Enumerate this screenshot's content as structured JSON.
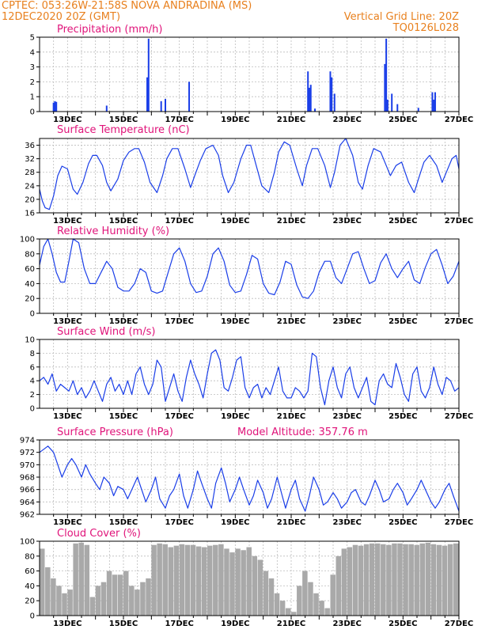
{
  "header": {
    "line1": "CPTEC:   053:26W-21:58S   NOVA ANDRADINA (MS)",
    "line2_left": "12DEC2020 20Z (GMT)",
    "line2_right": "Vertical Grid Line: 20Z",
    "line3_right": "TQ0126L028"
  },
  "colors": {
    "header": "#e8801e",
    "title": "#e0147a",
    "line": "#1a3ee8",
    "cloud": "#a9a9a9"
  },
  "chart_data": [
    {
      "type": "bar",
      "title": "Precipitation (mm/h)",
      "ylim": [
        0,
        5
      ],
      "yticks": [
        "0",
        "1",
        "2",
        "3",
        "4",
        "5"
      ],
      "xticklabels": [
        "13DEC",
        "15DEC",
        "17DEC",
        "19DEC",
        "21DEC",
        "23DEC",
        "25DEC",
        "27DEC"
      ],
      "series": [
        {
          "x": [
            0.5,
            0.55,
            0.6,
            2.4,
            3.85,
            3.9,
            4.35,
            4.5,
            5.35,
            9.6,
            9.65,
            9.7,
            9.85,
            10.4,
            10.45,
            10.55,
            12.35,
            12.4,
            12.45,
            12.6,
            12.8,
            13.55,
            14.05,
            14.1,
            14.15
          ],
          "values": [
            0.6,
            0.7,
            0.65,
            0.4,
            2.3,
            4.9,
            0.7,
            0.85,
            2.0,
            2.7,
            1.6,
            1.8,
            0.2,
            2.7,
            2.3,
            1.2,
            3.2,
            4.9,
            0.8,
            1.2,
            0.5,
            0.25,
            1.3,
            0.8,
            1.3
          ]
        }
      ]
    },
    {
      "type": "line",
      "title": "Surface Temperature (nC)",
      "ylim": [
        16,
        38
      ],
      "yticks": [
        "16",
        "20",
        "24",
        "28",
        "32",
        "36"
      ],
      "xticklabels": [
        "13DEC",
        "15DEC",
        "17DEC",
        "19DEC",
        "21DEC",
        "23DEC",
        "25DEC",
        "27DEC"
      ],
      "series": [
        {
          "x": [
            0,
            0.1,
            0.2,
            0.35,
            0.5,
            0.65,
            0.8,
            1.0,
            1.2,
            1.35,
            1.55,
            1.75,
            1.9,
            2.05,
            2.25,
            2.4,
            2.55,
            2.8,
            3.0,
            3.2,
            3.4,
            3.55,
            3.75,
            3.95,
            4.2,
            4.4,
            4.55,
            4.75,
            4.95,
            5.2,
            5.4,
            5.55,
            5.75,
            5.95,
            6.2,
            6.4,
            6.55,
            6.75,
            6.95,
            7.2,
            7.4,
            7.55,
            7.75,
            7.95,
            8.2,
            8.4,
            8.55,
            8.75,
            8.95,
            9.2,
            9.4,
            9.55,
            9.75,
            9.95,
            10.2,
            10.4,
            10.55,
            10.75,
            10.95,
            11.2,
            11.4,
            11.55,
            11.75,
            11.95,
            12.2,
            12.4,
            12.55,
            12.75,
            12.95,
            13.2,
            13.4,
            13.55,
            13.75,
            13.95,
            14.2,
            14.4,
            14.55,
            14.75,
            14.9,
            15.0
          ],
          "values": [
            23,
            19.5,
            17.5,
            17,
            21,
            27,
            29.8,
            29,
            23,
            21.5,
            25,
            30.5,
            33,
            33,
            30,
            25,
            22.5,
            26,
            31.5,
            34,
            35,
            35,
            31,
            25,
            22,
            27,
            32,
            35,
            35,
            29,
            23.5,
            27,
            31.5,
            35,
            36,
            33,
            27,
            22,
            25,
            32,
            36,
            36,
            30,
            24,
            22,
            28,
            34,
            37,
            36,
            29,
            24,
            30,
            35,
            35,
            30,
            23.5,
            28,
            36,
            38,
            33,
            25,
            23,
            30,
            35,
            34,
            30,
            27,
            30,
            31,
            25,
            22,
            26,
            31,
            33,
            30,
            25,
            28,
            32,
            33,
            29
          ]
        }
      ]
    },
    {
      "type": "line",
      "title": "Relative Humidity (%)",
      "ylim": [
        0,
        100
      ],
      "yticks": [
        "0",
        "20",
        "40",
        "60",
        "80",
        "100"
      ],
      "xticklabels": [
        "13DEC",
        "15DEC",
        "17DEC",
        "19DEC",
        "21DEC",
        "23DEC",
        "25DEC",
        "27DEC"
      ],
      "series": [
        {
          "x": [
            0,
            0.15,
            0.3,
            0.45,
            0.6,
            0.75,
            0.9,
            1.05,
            1.2,
            1.4,
            1.6,
            1.8,
            2.0,
            2.2,
            2.4,
            2.6,
            2.8,
            3.0,
            3.2,
            3.4,
            3.6,
            3.8,
            4.0,
            4.2,
            4.4,
            4.6,
            4.8,
            5.0,
            5.2,
            5.4,
            5.6,
            5.8,
            6.0,
            6.2,
            6.4,
            6.6,
            6.8,
            7.0,
            7.2,
            7.4,
            7.6,
            7.8,
            8.0,
            8.2,
            8.4,
            8.6,
            8.8,
            9.0,
            9.2,
            9.4,
            9.6,
            9.8,
            10.0,
            10.2,
            10.4,
            10.6,
            10.8,
            11.0,
            11.2,
            11.4,
            11.6,
            11.8,
            12.0,
            12.2,
            12.4,
            12.6,
            12.8,
            13.0,
            13.2,
            13.4,
            13.6,
            13.8,
            14.0,
            14.2,
            14.4,
            14.6,
            14.8,
            15.0
          ],
          "values": [
            65,
            90,
            100,
            80,
            55,
            42,
            42,
            70,
            100,
            95,
            60,
            40,
            40,
            55,
            70,
            60,
            35,
            30,
            30,
            40,
            60,
            55,
            30,
            27,
            30,
            55,
            80,
            88,
            70,
            40,
            28,
            30,
            50,
            80,
            88,
            70,
            38,
            28,
            30,
            52,
            78,
            73,
            40,
            27,
            25,
            42,
            70,
            66,
            38,
            22,
            20,
            30,
            55,
            70,
            70,
            48,
            40,
            60,
            80,
            83,
            60,
            40,
            44,
            68,
            80,
            60,
            48,
            60,
            70,
            45,
            40,
            62,
            80,
            86,
            65,
            40,
            50,
            70
          ]
        }
      ]
    },
    {
      "type": "line",
      "title": "Surface Wind (m/s)",
      "ylim": [
        0,
        10
      ],
      "yticks": [
        "0",
        "2",
        "4",
        "6",
        "8",
        "10"
      ],
      "xticklabels": [
        "13DEC",
        "15DEC",
        "17DEC",
        "19DEC",
        "21DEC",
        "23DEC",
        "25DEC",
        "27DEC"
      ],
      "series": [
        {
          "x": [
            0,
            0.15,
            0.3,
            0.45,
            0.6,
            0.75,
            0.9,
            1.05,
            1.2,
            1.35,
            1.5,
            1.65,
            1.8,
            1.95,
            2.1,
            2.25,
            2.4,
            2.55,
            2.7,
            2.85,
            3.0,
            3.15,
            3.3,
            3.45,
            3.6,
            3.75,
            3.9,
            4.05,
            4.2,
            4.35,
            4.5,
            4.65,
            4.8,
            4.95,
            5.1,
            5.25,
            5.4,
            5.55,
            5.7,
            5.85,
            6.0,
            6.15,
            6.3,
            6.45,
            6.6,
            6.75,
            6.9,
            7.05,
            7.2,
            7.35,
            7.5,
            7.65,
            7.8,
            7.95,
            8.1,
            8.25,
            8.4,
            8.55,
            8.7,
            8.85,
            9.0,
            9.15,
            9.3,
            9.45,
            9.6,
            9.75,
            9.9,
            10.05,
            10.2,
            10.35,
            10.5,
            10.65,
            10.8,
            10.95,
            11.1,
            11.25,
            11.4,
            11.55,
            11.7,
            11.85,
            12.0,
            12.15,
            12.3,
            12.45,
            12.6,
            12.75,
            12.9,
            13.05,
            13.2,
            13.35,
            13.5,
            13.65,
            13.8,
            13.95,
            14.1,
            14.25,
            14.4,
            14.55,
            14.7,
            14.85,
            15.0
          ],
          "values": [
            4,
            4.5,
            3.5,
            5,
            2.5,
            3.5,
            3,
            2.5,
            4,
            2,
            3,
            1.5,
            2.5,
            4,
            2.5,
            1,
            3.5,
            4.5,
            2.5,
            3.5,
            2,
            4,
            2,
            5,
            6,
            3.5,
            2,
            3.5,
            7,
            6,
            1,
            3,
            5,
            2.5,
            1,
            4.5,
            7,
            5,
            3.5,
            1.5,
            5,
            8,
            8.5,
            7,
            3,
            2.5,
            4.5,
            7,
            7.5,
            3,
            1.5,
            3,
            3.5,
            1.5,
            3,
            2,
            4,
            6,
            2.5,
            1.5,
            1.5,
            3,
            2.5,
            1.5,
            2.5,
            8,
            7.5,
            3,
            0.5,
            4,
            6,
            3,
            1.5,
            5,
            6,
            3,
            1.5,
            3,
            4.5,
            1,
            0.5,
            4,
            5,
            3.5,
            3,
            6.5,
            4.5,
            2,
            1,
            5,
            6,
            2.5,
            1.5,
            3,
            6,
            3.5,
            2,
            4.5,
            4,
            2.5,
            3
          ]
        }
      ]
    },
    {
      "type": "line",
      "title": "Surface Pressure (hPa)",
      "annotation": "Model Altitude: 357.76 m",
      "ylim": [
        962,
        974
      ],
      "yticks": [
        "962",
        "964",
        "966",
        "968",
        "970",
        "972",
        "974"
      ],
      "xticklabels": [
        "13DEC",
        "15DEC",
        "17DEC",
        "19DEC",
        "21DEC",
        "23DEC",
        "25DEC",
        "27DEC"
      ],
      "series": [
        {
          "x": [
            0,
            0.15,
            0.3,
            0.5,
            0.65,
            0.8,
            1.0,
            1.15,
            1.3,
            1.5,
            1.65,
            1.8,
            2.0,
            2.15,
            2.3,
            2.5,
            2.65,
            2.8,
            3.0,
            3.15,
            3.3,
            3.5,
            3.65,
            3.8,
            4.0,
            4.15,
            4.3,
            4.5,
            4.65,
            4.8,
            5.0,
            5.15,
            5.3,
            5.5,
            5.65,
            5.8,
            6.0,
            6.15,
            6.3,
            6.5,
            6.65,
            6.8,
            7.0,
            7.15,
            7.3,
            7.5,
            7.65,
            7.8,
            8.0,
            8.15,
            8.3,
            8.5,
            8.65,
            8.8,
            9.0,
            9.15,
            9.3,
            9.5,
            9.65,
            9.8,
            10.0,
            10.15,
            10.3,
            10.5,
            10.65,
            10.8,
            11.0,
            11.15,
            11.3,
            11.5,
            11.65,
            11.8,
            12.0,
            12.15,
            12.3,
            12.5,
            12.65,
            12.8,
            13.0,
            13.15,
            13.3,
            13.5,
            13.65,
            13.8,
            14.0,
            14.15,
            14.3,
            14.5,
            14.65,
            14.8,
            15.0
          ],
          "values": [
            972,
            972.5,
            973,
            972,
            970,
            968,
            970,
            971,
            970,
            968,
            970,
            968.5,
            967,
            966,
            968,
            967,
            965,
            966.5,
            966,
            964.5,
            966,
            968,
            966,
            964,
            966,
            968,
            964.5,
            963,
            965,
            966,
            968.5,
            965,
            963,
            966,
            969,
            967,
            964.5,
            963,
            967,
            969.5,
            967,
            964,
            966,
            968,
            966,
            963.5,
            965,
            967.5,
            965.5,
            963,
            964.5,
            968,
            965.5,
            963,
            966,
            967.5,
            964.5,
            962.5,
            965,
            968,
            966,
            963.5,
            964,
            965.5,
            964.5,
            963,
            964,
            965.5,
            966,
            964,
            963.5,
            965,
            967.5,
            966,
            964,
            964.5,
            966,
            967,
            965.5,
            963.5,
            964.5,
            966,
            967.5,
            966,
            964,
            963,
            964,
            966,
            967,
            965,
            962.5
          ]
        }
      ]
    },
    {
      "type": "bar",
      "title": "Cloud Cover (%)",
      "ylim": [
        0,
        100
      ],
      "yticks": [
        "0",
        "20",
        "40",
        "60",
        "80",
        "100"
      ],
      "xticklabels": [
        "13DEC",
        "15DEC",
        "17DEC",
        "19DEC",
        "21DEC",
        "23DEC",
        "25DEC",
        "27DEC"
      ],
      "series": [
        {
          "x": [
            0,
            0.2,
            0.4,
            0.6,
            0.8,
            1.0,
            1.2,
            1.4,
            1.6,
            1.8,
            2.0,
            2.2,
            2.4,
            2.6,
            2.8,
            3.0,
            3.2,
            3.4,
            3.6,
            3.8,
            4.0,
            4.2,
            4.4,
            4.6,
            4.8,
            5.0,
            5.2,
            5.4,
            5.6,
            5.8,
            6.0,
            6.2,
            6.4,
            6.6,
            6.8,
            7.0,
            7.2,
            7.4,
            7.6,
            7.8,
            8.0,
            8.2,
            8.4,
            8.6,
            8.8,
            9.0,
            9.2,
            9.4,
            9.6,
            9.8,
            10.0,
            10.2,
            10.4,
            10.6,
            10.8,
            11.0,
            11.2,
            11.4,
            11.6,
            11.8,
            12.0,
            12.2,
            12.4,
            12.6,
            12.8,
            13.0,
            13.2,
            13.4,
            13.6,
            13.8,
            14.0,
            14.2,
            14.4,
            14.6,
            14.8
          ],
          "values": [
            90,
            65,
            50,
            40,
            30,
            35,
            97,
            98,
            95,
            25,
            40,
            45,
            60,
            55,
            55,
            60,
            40,
            35,
            45,
            50,
            95,
            97,
            96,
            92,
            94,
            96,
            95,
            95,
            93,
            92,
            94,
            95,
            96,
            90,
            85,
            90,
            88,
            92,
            80,
            75,
            60,
            50,
            30,
            20,
            10,
            5,
            40,
            60,
            45,
            30,
            20,
            10,
            55,
            80,
            90,
            92,
            95,
            94,
            96,
            97,
            97,
            96,
            95,
            97,
            97,
            96,
            96,
            95,
            97,
            98,
            96,
            95,
            94,
            96,
            97
          ]
        }
      ]
    }
  ]
}
